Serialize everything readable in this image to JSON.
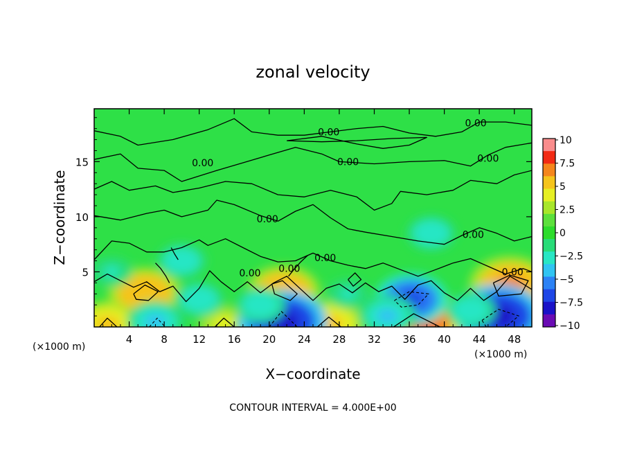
{
  "chart_data": {
    "type": "heatmap",
    "title": "zonal velocity",
    "xlabel": "X−coordinate",
    "ylabel": "Z−coordinate",
    "x_unit_label": "(×1000 m)",
    "xlim": [
      0,
      50
    ],
    "ylim": [
      0,
      19.8
    ],
    "x_ticks": [
      4,
      8,
      12,
      16,
      20,
      24,
      28,
      32,
      36,
      40,
      44,
      48
    ],
    "y_ticks": [
      5,
      10,
      15
    ],
    "colorbar": {
      "range": [
        -10,
        10
      ],
      "ticks": [
        "10",
        "7.5",
        "5",
        "2.5",
        "0",
        "−2.5",
        "−5",
        "−7.5",
        "−10"
      ],
      "colors": [
        "#f98c8c",
        "#f22a14",
        "#f5861c",
        "#f5c41c",
        "#e6ef24",
        "#a8e62a",
        "#5ce03c",
        "#2cdc2c",
        "#28dc78",
        "#28e6c4",
        "#30c4f2",
        "#2c82f5",
        "#1e46e6",
        "#1a12c8",
        "#6a0cb4"
      ]
    },
    "contour_label": "0.00",
    "contour_interval_text": "CONTOUR INTERVAL = 4.000E+00",
    "features": [
      {
        "kind": "max",
        "x": 5.8,
        "z": 3.0,
        "value": 6
      },
      {
        "kind": "max",
        "x": 21.6,
        "z": 3.2,
        "value": 6
      },
      {
        "kind": "max",
        "x": 47.5,
        "z": 3.8,
        "value": 7
      },
      {
        "kind": "max",
        "x": 37.0,
        "z": 0.4,
        "value": 8
      },
      {
        "kind": "max",
        "x": 1.5,
        "z": 0.2,
        "value": 5
      },
      {
        "kind": "max",
        "x": 27.0,
        "z": 0.3,
        "value": 5
      },
      {
        "kind": "max",
        "x": 14.8,
        "z": 0.3,
        "value": 4
      },
      {
        "kind": "min",
        "x": 21.5,
        "z": 0.5,
        "value": -8
      },
      {
        "kind": "min",
        "x": 46.2,
        "z": 1.0,
        "value": -8
      },
      {
        "kind": "min",
        "x": 36.2,
        "z": 2.5,
        "value": -6
      },
      {
        "kind": "min",
        "x": 10.0,
        "z": 6.0,
        "value": -3
      },
      {
        "kind": "min",
        "x": 7.0,
        "z": 0.5,
        "value": -4
      },
      {
        "kind": "min",
        "x": 33.5,
        "z": 1.0,
        "value": -4
      },
      {
        "kind": "min",
        "x": 19.0,
        "z": 2.0,
        "value": -3
      },
      {
        "kind": "min",
        "x": 12.0,
        "z": 2.5,
        "value": -3
      },
      {
        "kind": "min",
        "x": 43.0,
        "z": 1.5,
        "value": -3
      },
      {
        "kind": "min",
        "x": 38.5,
        "z": 8.5,
        "value": -3
      },
      {
        "kind": "min",
        "x": 2.0,
        "z": 5.0,
        "value": -2
      },
      {
        "kind": "min",
        "x": 29.0,
        "z": 3.0,
        "value": -2
      }
    ],
    "contour_labels": [
      {
        "x": 26.8,
        "z": 17.7
      },
      {
        "x": 43.6,
        "z": 18.5
      },
      {
        "x": 29.0,
        "z": 15.0
      },
      {
        "x": 12.4,
        "z": 14.9
      },
      {
        "x": 45.0,
        "z": 15.3
      },
      {
        "x": 19.8,
        "z": 9.8
      },
      {
        "x": 43.3,
        "z": 8.4
      },
      {
        "x": 26.4,
        "z": 6.3
      },
      {
        "x": 17.8,
        "z": 4.9
      },
      {
        "x": 47.8,
        "z": 5.0
      },
      {
        "x": 22.3,
        "z": 5.3
      }
    ],
    "contours": [
      [
        [
          0,
          17.8
        ],
        [
          3,
          17.3
        ],
        [
          5,
          16.5
        ],
        [
          9,
          17.0
        ],
        [
          13,
          17.9
        ],
        [
          16,
          18.9
        ],
        [
          18,
          17.7
        ],
        [
          21,
          17.4
        ],
        [
          24,
          17.4
        ],
        [
          27,
          17.7
        ],
        [
          30,
          18.0
        ],
        [
          33,
          18.2
        ],
        [
          36,
          17.6
        ],
        [
          39,
          17.3
        ],
        [
          42,
          17.7
        ],
        [
          44,
          18.6
        ],
        [
          47,
          18.6
        ],
        [
          50,
          18.3
        ]
      ],
      [
        [
          22,
          16.9
        ],
        [
          26,
          17.3
        ],
        [
          30,
          16.6
        ],
        [
          33,
          16.2
        ],
        [
          36,
          16.5
        ],
        [
          38,
          17.2
        ],
        [
          34,
          17.1
        ],
        [
          30,
          16.9
        ],
        [
          26,
          16.8
        ],
        [
          22,
          16.9
        ]
      ],
      [
        [
          0,
          15.2
        ],
        [
          3,
          15.7
        ],
        [
          5,
          14.4
        ],
        [
          8,
          14.2
        ],
        [
          10,
          13.2
        ],
        [
          14,
          14.2
        ],
        [
          17,
          14.9
        ],
        [
          20,
          15.6
        ],
        [
          23,
          16.3
        ],
        [
          26,
          15.7
        ],
        [
          28,
          15.0
        ],
        [
          32,
          14.8
        ],
        [
          36,
          15.0
        ],
        [
          40,
          15.1
        ],
        [
          43,
          14.6
        ],
        [
          45,
          15.6
        ],
        [
          47,
          16.3
        ],
        [
          50,
          16.7
        ]
      ],
      [
        [
          0,
          12.5
        ],
        [
          2,
          13.2
        ],
        [
          4,
          12.4
        ],
        [
          7,
          12.8
        ],
        [
          9,
          12.2
        ],
        [
          12,
          12.6
        ],
        [
          15,
          13.2
        ],
        [
          18,
          13.0
        ],
        [
          21,
          12.0
        ],
        [
          24,
          11.8
        ],
        [
          27,
          12.4
        ],
        [
          30,
          11.8
        ],
        [
          32,
          10.6
        ],
        [
          34,
          11.2
        ],
        [
          35,
          12.3
        ],
        [
          38,
          12.0
        ],
        [
          41,
          12.4
        ],
        [
          43,
          13.3
        ],
        [
          46,
          13.0
        ],
        [
          48,
          13.8
        ],
        [
          50,
          14.2
        ]
      ],
      [
        [
          0,
          10.1
        ],
        [
          3,
          9.7
        ],
        [
          6,
          10.3
        ],
        [
          8,
          10.6
        ],
        [
          10,
          10.0
        ],
        [
          13,
          10.6
        ],
        [
          14,
          11.5
        ],
        [
          16,
          11.1
        ],
        [
          19,
          10.1
        ],
        [
          21,
          9.6
        ],
        [
          23,
          10.5
        ],
        [
          25,
          11.1
        ],
        [
          27,
          9.9
        ],
        [
          29,
          8.9
        ],
        [
          31,
          8.6
        ],
        [
          34,
          8.2
        ],
        [
          37,
          7.8
        ],
        [
          40,
          7.5
        ],
        [
          42,
          8.3
        ],
        [
          44,
          9.0
        ],
        [
          46,
          8.5
        ],
        [
          48,
          7.8
        ],
        [
          50,
          8.2
        ]
      ],
      [
        [
          0,
          6.1
        ],
        [
          2,
          7.8
        ],
        [
          4,
          7.6
        ],
        [
          6,
          6.8
        ],
        [
          8,
          6.8
        ],
        [
          10,
          7.2
        ],
        [
          12,
          7.9
        ],
        [
          13,
          7.4
        ],
        [
          15,
          8.0
        ],
        [
          17,
          7.2
        ],
        [
          19,
          6.4
        ],
        [
          21,
          5.9
        ],
        [
          23,
          6.0
        ],
        [
          25,
          6.7
        ],
        [
          27,
          6.0
        ],
        [
          29,
          5.6
        ],
        [
          31,
          5.3
        ],
        [
          33,
          5.8
        ],
        [
          35,
          5.2
        ],
        [
          37,
          4.6
        ],
        [
          39,
          5.2
        ],
        [
          41,
          5.8
        ],
        [
          43,
          6.2
        ],
        [
          45,
          5.5
        ],
        [
          47,
          4.8
        ],
        [
          49,
          5.3
        ],
        [
          50,
          5.0
        ]
      ],
      [
        [
          0,
          4.1
        ],
        [
          1.5,
          4.8
        ],
        [
          3,
          4.2
        ],
        [
          4.5,
          3.6
        ],
        [
          6,
          4.1
        ],
        [
          7.5,
          3.2
        ],
        [
          9,
          3.7
        ],
        [
          10.5,
          2.3
        ],
        [
          12,
          3.5
        ],
        [
          13.2,
          5.1
        ],
        [
          14.5,
          4.1
        ],
        [
          16,
          3.2
        ],
        [
          17.5,
          4.1
        ],
        [
          19,
          3.1
        ],
        [
          20.5,
          4.0
        ],
        [
          22,
          4.6
        ],
        [
          23.5,
          3.5
        ],
        [
          25,
          2.4
        ],
        [
          26.5,
          3.5
        ],
        [
          28,
          3.9
        ],
        [
          29.5,
          3.1
        ],
        [
          31,
          4.0
        ],
        [
          32.5,
          3.2
        ],
        [
          34,
          3.7
        ],
        [
          35.5,
          2.5
        ],
        [
          37,
          3.8
        ],
        [
          38.5,
          4.2
        ],
        [
          40,
          3.1
        ],
        [
          41.5,
          2.4
        ],
        [
          43,
          3.5
        ],
        [
          44.5,
          2.4
        ],
        [
          46,
          3.2
        ],
        [
          47.5,
          4.6
        ],
        [
          49,
          3.9
        ],
        [
          50,
          3.4
        ]
      ],
      [
        [
          4.5,
          3.0
        ],
        [
          5.8,
          3.8
        ],
        [
          7.3,
          3.2
        ],
        [
          6.2,
          2.4
        ],
        [
          4.8,
          2.5
        ],
        [
          4.5,
          3.0
        ]
      ],
      [
        [
          20.3,
          3.9
        ],
        [
          21.5,
          4.2
        ],
        [
          23.2,
          3.0
        ],
        [
          22.4,
          2.4
        ],
        [
          20.6,
          3.0
        ],
        [
          20.3,
          3.9
        ]
      ],
      [
        [
          45.6,
          4.0
        ],
        [
          47.5,
          4.7
        ],
        [
          49.6,
          4.2
        ],
        [
          48.8,
          3.0
        ],
        [
          46.2,
          2.8
        ],
        [
          45.6,
          4.0
        ]
      ],
      [
        [
          0.6,
          0.0
        ],
        [
          1.5,
          0.8
        ],
        [
          2.6,
          0.0
        ]
      ],
      [
        [
          13.8,
          0.0
        ],
        [
          14.8,
          0.8
        ],
        [
          16.0,
          0.0
        ]
      ],
      [
        [
          25.5,
          0.0
        ],
        [
          26.8,
          0.9
        ],
        [
          28.2,
          0.0
        ]
      ],
      [
        [
          34.2,
          0.0
        ],
        [
          36.5,
          1.2
        ],
        [
          39.5,
          0.0
        ]
      ],
      [
        [
          7.0,
          5.8
        ],
        [
          7.6,
          5.3
        ],
        [
          8.2,
          4.6
        ],
        [
          8.6,
          4.0
        ]
      ],
      [
        [
          8.8,
          7.2
        ],
        [
          9.2,
          6.6
        ],
        [
          9.6,
          6.1
        ]
      ],
      [
        [
          22.2,
          4.6
        ],
        [
          22.8,
          5.2
        ],
        [
          23.6,
          5.9
        ],
        [
          24.4,
          6.5
        ]
      ],
      [
        [
          29.0,
          4.3
        ],
        [
          29.8,
          4.9
        ],
        [
          30.5,
          4.3
        ],
        [
          29.6,
          3.7
        ],
        [
          29.0,
          4.3
        ]
      ]
    ],
    "dashed_contours": [
      [
        [
          34.3,
          2.4
        ],
        [
          36.0,
          3.2
        ],
        [
          38.2,
          3.0
        ],
        [
          37.0,
          2.0
        ],
        [
          35.1,
          1.8
        ],
        [
          34.3,
          2.4
        ]
      ],
      [
        [
          20.0,
          0.0
        ],
        [
          21.4,
          1.4
        ],
        [
          23.2,
          0.0
        ]
      ],
      [
        [
          44.3,
          0.6
        ],
        [
          46.2,
          1.6
        ],
        [
          48.5,
          1.0
        ],
        [
          47.0,
          0.0
        ],
        [
          44.8,
          0.0
        ],
        [
          44.3,
          0.6
        ]
      ],
      [
        [
          6.3,
          0.0
        ],
        [
          7.2,
          0.8
        ],
        [
          8.1,
          0.0
        ]
      ]
    ]
  }
}
